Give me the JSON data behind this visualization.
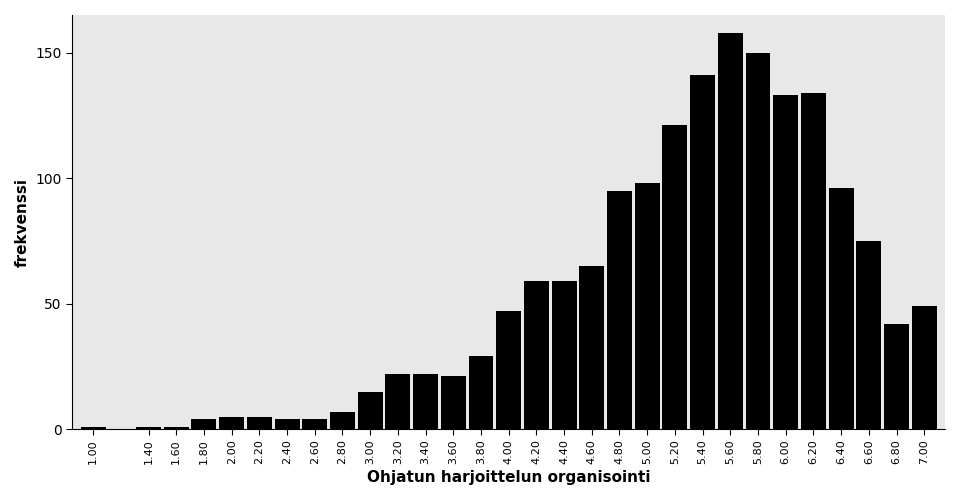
{
  "categories": [
    "1.00",
    "1.40",
    "1.60",
    "1.80",
    "2.00",
    "2.20",
    "2.40",
    "2.60",
    "2.80",
    "3.00",
    "3.20",
    "3.40",
    "3.60",
    "3.80",
    "4.00",
    "4.20",
    "4.40",
    "4.60",
    "4.80",
    "5.00",
    "5.20",
    "5.40",
    "5.60",
    "5.80",
    "6.00",
    "6.20",
    "6.40",
    "6.60",
    "6.80",
    "7.00"
  ],
  "values": [
    1,
    1,
    1,
    4,
    5,
    5,
    4,
    4,
    7,
    15,
    22,
    22,
    21,
    29,
    47,
    59,
    59,
    65,
    95,
    98,
    121,
    141,
    158,
    150,
    133,
    134,
    96,
    75,
    42,
    49
  ],
  "bar_color": "#000000",
  "ylabel": "frekvenssi",
  "xlabel": "Ohjatun harjoittelun organisointi",
  "ylim": [
    0,
    165
  ],
  "yticks": [
    0,
    50,
    100,
    150
  ],
  "bg_color": "#e8e8e8",
  "bar_width": 0.18
}
